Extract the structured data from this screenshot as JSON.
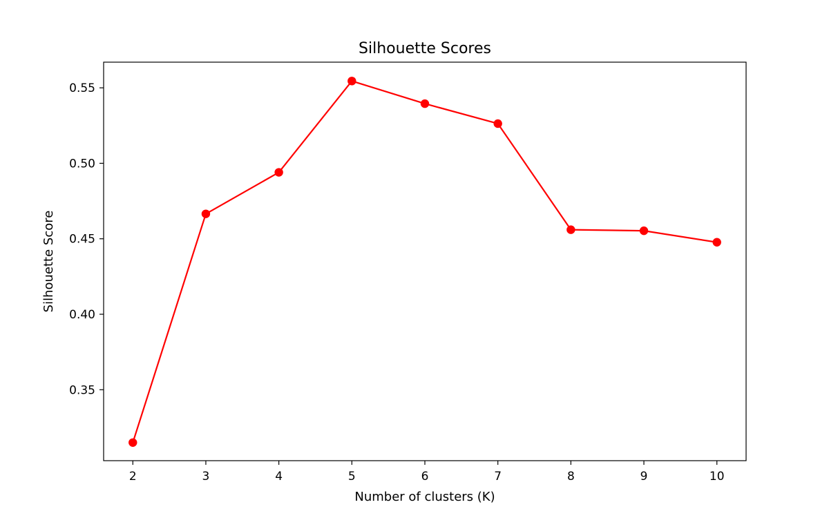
{
  "chart_data": {
    "type": "line",
    "title": "Silhouette Scores",
    "xlabel": "Number of clusters (K)",
    "ylabel": "Silhouette Score",
    "x": [
      2,
      3,
      4,
      5,
      6,
      7,
      8,
      9,
      10
    ],
    "x_ticks": [
      "2",
      "3",
      "4",
      "5",
      "6",
      "7",
      "8",
      "9",
      "10"
    ],
    "y_ticks": [
      "0.35",
      "0.40",
      "0.45",
      "0.50",
      "0.55"
    ],
    "xlim": [
      1.6,
      10.4
    ],
    "ylim": [
      0.303,
      0.567
    ],
    "grid": false,
    "series": [
      {
        "color": "#ff0000",
        "marker": "circle",
        "values": [
          0.315,
          0.4665,
          0.494,
          0.5545,
          0.5395,
          0.5263,
          0.456,
          0.4553,
          0.4477
        ]
      }
    ]
  }
}
